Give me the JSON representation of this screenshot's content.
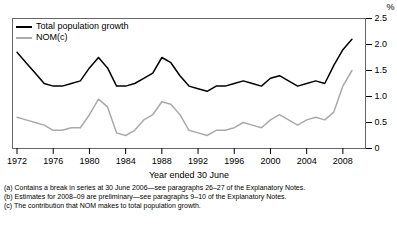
{
  "chart_data": {
    "type": "line",
    "xlabel": "Year ended 30 June",
    "ylabel": "%",
    "annotations": [
      "(a) Contains a break in series at 30 June 2006—see paragraphs 26–27 of the Explanatory Notes.",
      "(b) Estimates for 2008–09 are preliminary—see paragraphs 9–10 of the Explanatory Notes.",
      "(c) The contribution that NOM makes to total population growth."
    ],
    "x": [
      1972,
      1973,
      1974,
      1975,
      1976,
      1977,
      1978,
      1979,
      1980,
      1981,
      1982,
      1983,
      1984,
      1985,
      1986,
      1987,
      1988,
      1989,
      1990,
      1991,
      1992,
      1993,
      1994,
      1995,
      1996,
      1997,
      1998,
      1999,
      2000,
      2001,
      2002,
      2003,
      2004,
      2005,
      2006,
      2007,
      2008,
      2009
    ],
    "series": [
      {
        "name": "Total population growth",
        "color": "#000000",
        "values": [
          1.85,
          1.65,
          1.45,
          1.25,
          1.2,
          1.2,
          1.25,
          1.3,
          1.55,
          1.75,
          1.55,
          1.2,
          1.2,
          1.25,
          1.35,
          1.45,
          1.75,
          1.65,
          1.4,
          1.2,
          1.15,
          1.1,
          1.2,
          1.2,
          1.25,
          1.3,
          1.25,
          1.2,
          1.35,
          1.4,
          1.3,
          1.2,
          1.25,
          1.3,
          1.25,
          1.6,
          1.9,
          2.1
        ]
      },
      {
        "name": "NOM(c)",
        "color": "#aaaaaa",
        "values": [
          0.6,
          0.55,
          0.5,
          0.45,
          0.35,
          0.35,
          0.4,
          0.4,
          0.65,
          0.95,
          0.8,
          0.3,
          0.25,
          0.35,
          0.55,
          0.65,
          0.9,
          0.85,
          0.65,
          0.35,
          0.3,
          0.25,
          0.35,
          0.35,
          0.4,
          0.5,
          0.45,
          0.4,
          0.55,
          0.65,
          0.55,
          0.45,
          0.55,
          0.6,
          0.55,
          0.7,
          1.2,
          1.5
        ]
      }
    ],
    "xlim": [
      1971.5,
      2010.5
    ],
    "xticks": [
      1972,
      1976,
      1980,
      1984,
      1988,
      1992,
      1996,
      2000,
      2004,
      2008
    ],
    "ylim": [
      0,
      2.5
    ],
    "yticks": [
      0,
      0.5,
      {
        "value": 1.0,
        "label": "1.0"
      },
      1.5,
      {
        "value": 2.0,
        "label": "2.0"
      },
      2.5
    ],
    "grid": false,
    "legend": "upper left"
  }
}
